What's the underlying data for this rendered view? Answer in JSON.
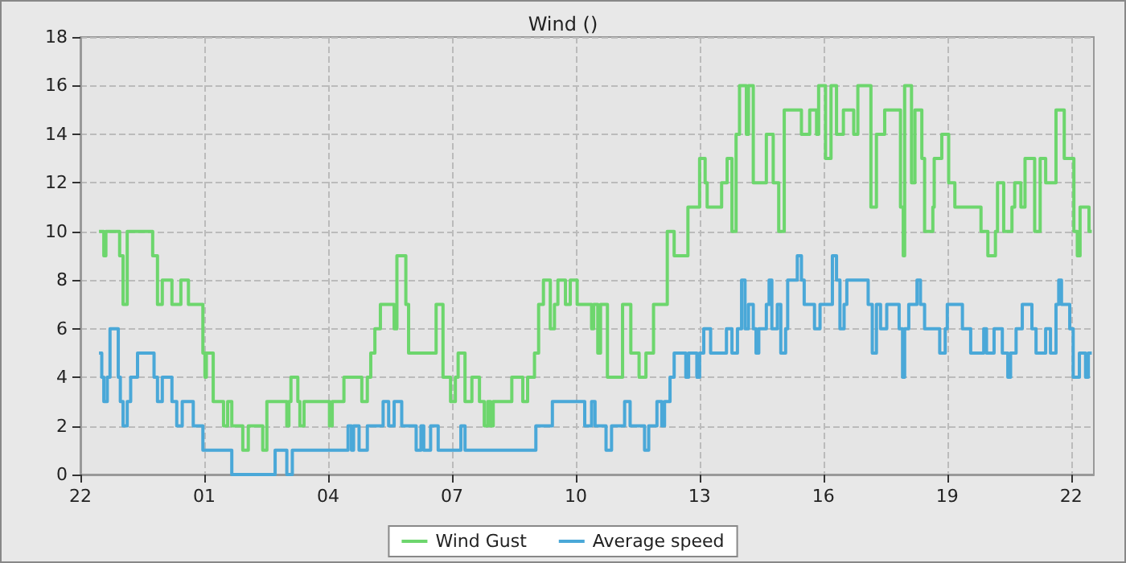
{
  "chart_data": {
    "type": "step",
    "title": "Wind ()",
    "xlim": [
      "--01-01T22:00",
      "--01-02T22:33"
    ],
    "ylim": [
      0,
      18
    ],
    "xticks": [
      {
        "value": "--01-01T22:00",
        "label": "22"
      },
      {
        "value": "--01-02T01:00",
        "label": "01"
      },
      {
        "value": "--01-02T04:00",
        "label": "04"
      },
      {
        "value": "--01-02T07:00",
        "label": "07"
      },
      {
        "value": "--01-02T10:00",
        "label": "10"
      },
      {
        "value": "--01-02T13:00",
        "label": "13"
      },
      {
        "value": "--01-02T16:00",
        "label": "16"
      },
      {
        "value": "--01-02T19:00",
        "label": "19"
      },
      {
        "value": "--01-02T22:00",
        "label": "22"
      }
    ],
    "yticks": [
      0,
      2,
      4,
      6,
      8,
      10,
      12,
      14,
      16,
      18
    ],
    "grid": true,
    "legend": "bottom",
    "marker": "none",
    "line_style": "solid",
    "series": [
      {
        "name": "Wind Gust",
        "color": "#6dd66d",
        "x": [
          "--01-01T22:27",
          "--01-01T22:34",
          "--01-01T22:37",
          "--01-01T22:57",
          "--01-01T23:02",
          "--01-01T23:08",
          "--01-01T23:45",
          "--01-01T23:52",
          "--01-01T23:59",
          "--01-02T00:13",
          "--01-02T00:26",
          "--01-02T00:37",
          "--01-02T00:58",
          "--01-02T01:01",
          "--01-02T01:03",
          "--01-02T01:13",
          "--01-02T01:28",
          "--01-02T01:34",
          "--01-02T01:40",
          "--01-02T01:56",
          "--01-02T02:04",
          "--01-02T02:25",
          "--01-02T02:31",
          "--01-02T03:00",
          "--01-02T03:03",
          "--01-02T03:06",
          "--01-02T03:16",
          "--01-02T03:19",
          "--01-02T03:25",
          "--01-02T04:02",
          "--01-02T04:06",
          "--01-02T04:23",
          "--01-02T04:49",
          "--01-02T04:57",
          "--01-02T05:02",
          "--01-02T05:08",
          "--01-02T05:16",
          "--01-02T05:36",
          "--01-02T05:40",
          "--01-02T05:53",
          "--01-02T05:57",
          "--01-02T06:37",
          "--01-02T06:47",
          "--01-02T06:58",
          "--01-02T07:05",
          "--01-02T07:09",
          "--01-02T07:19",
          "--01-02T07:29",
          "--01-02T07:40",
          "--01-02T07:47",
          "--01-02T07:52",
          "--01-02T07:56",
          "--01-02T08:00",
          "--01-02T08:27",
          "--01-02T08:43",
          "--01-02T08:50",
          "--01-02T09:00",
          "--01-02T09:06",
          "--01-02T09:13",
          "--01-02T09:23",
          "--01-02T09:29",
          "--01-02T09:34",
          "--01-02T09:45",
          "--01-02T09:52",
          "--01-02T10:02",
          "--01-02T10:23",
          "--01-02T10:26",
          "--01-02T10:32",
          "--01-02T10:36",
          "--01-02T10:46",
          "--01-02T11:08",
          "--01-02T11:20",
          "--01-02T11:32",
          "--01-02T11:42",
          "--01-02T11:53",
          "--01-02T12:13",
          "--01-02T12:23",
          "--01-02T12:43",
          "--01-02T13:00",
          "--01-02T13:08",
          "--01-02T13:11",
          "--01-02T13:32",
          "--01-02T13:40",
          "--01-02T13:47",
          "--01-02T13:53",
          "--01-02T13:58",
          "--01-02T14:08",
          "--01-02T14:11",
          "--01-02T14:18",
          "--01-02T14:37",
          "--01-02T14:47",
          "--01-02T14:55",
          "--01-02T15:03",
          "--01-02T15:28",
          "--01-02T15:40",
          "--01-02T15:50",
          "--01-02T15:53",
          "--01-02T16:03",
          "--01-02T16:11",
          "--01-02T16:19",
          "--01-02T16:29",
          "--01-02T16:44",
          "--01-02T16:50",
          "--01-02T17:09",
          "--01-02T17:17",
          "--01-02T17:29",
          "--01-02T17:52",
          "--01-02T17:56",
          "--01-02T17:58",
          "--01-02T18:08",
          "--01-02T18:13",
          "--01-02T18:23",
          "--01-02T18:27",
          "--01-02T18:39",
          "--01-02T18:41",
          "--01-02T18:52",
          "--01-02T19:02",
          "--01-02T19:11",
          "--01-02T19:49",
          "--01-02T19:59",
          "--01-02T20:10",
          "--01-02T20:13",
          "--01-02T20:22",
          "--01-02T20:34",
          "--01-02T20:38",
          "--01-02T20:47",
          "--01-02T20:53",
          "--01-02T21:07",
          "--01-02T21:15",
          "--01-02T21:23",
          "--01-02T21:38",
          "--01-02T21:50",
          "--01-02T22:04",
          "--01-02T22:09",
          "--01-02T22:13",
          "--01-02T22:26",
          "--01-02T22:30"
        ],
        "values": [
          10,
          9,
          10,
          9,
          7,
          10,
          9,
          7,
          8,
          7,
          8,
          7,
          5,
          4,
          5,
          3,
          2,
          3,
          2,
          1,
          2,
          1,
          3,
          2,
          3,
          4,
          3,
          2,
          3,
          2,
          3,
          4,
          3,
          4,
          5,
          6,
          7,
          6,
          9,
          7,
          5,
          7,
          4,
          3,
          4,
          5,
          3,
          4,
          3,
          2,
          3,
          2,
          3,
          4,
          3,
          4,
          5,
          7,
          8,
          6,
          7,
          8,
          7,
          8,
          7,
          6,
          7,
          5,
          7,
          4,
          7,
          5,
          4,
          5,
          7,
          10,
          9,
          11,
          13,
          12,
          11,
          12,
          13,
          10,
          14,
          16,
          14,
          16,
          12,
          14,
          12,
          10,
          15,
          14,
          15,
          14,
          16,
          13,
          16,
          14,
          15,
          14,
          16,
          11,
          14,
          15,
          11,
          9,
          16,
          12,
          15,
          13,
          10,
          11,
          13,
          14,
          12,
          11,
          10,
          9,
          10,
          12,
          10,
          11,
          12,
          11,
          13,
          10,
          13,
          12,
          15,
          13,
          10,
          9,
          11,
          10,
          10
        ]
      },
      {
        "name": "Average speed",
        "color": "#4aa8d8",
        "x": [
          "--01-01T22:27",
          "--01-01T22:31",
          "--01-01T22:34",
          "--01-01T22:39",
          "--01-01T22:43",
          "--01-01T22:55",
          "--01-01T22:58",
          "--01-01T23:02",
          "--01-01T23:08",
          "--01-01T23:13",
          "--01-01T23:23",
          "--01-01T23:47",
          "--01-01T23:52",
          "--01-01T23:59",
          "--01-02T00:13",
          "--01-02T00:20",
          "--01-02T00:28",
          "--01-02T00:44",
          "--01-02T00:58",
          "--01-02T01:40",
          "--01-02T02:43",
          "--01-02T03:00",
          "--01-02T03:08",
          "--01-02T04:29",
          "--01-02T04:34",
          "--01-02T04:37",
          "--01-02T04:45",
          "--01-02T04:57",
          "--01-02T05:20",
          "--01-02T05:28",
          "--01-02T05:36",
          "--01-02T05:47",
          "--01-02T06:08",
          "--01-02T06:15",
          "--01-02T06:19",
          "--01-02T06:29",
          "--01-02T06:40",
          "--01-02T07:13",
          "--01-02T07:19",
          "--01-02T09:02",
          "--01-02T09:26",
          "--01-02T10:13",
          "--01-02T10:23",
          "--01-02T10:28",
          "--01-02T10:44",
          "--01-02T10:52",
          "--01-02T11:11",
          "--01-02T11:19",
          "--01-02T11:40",
          "--01-02T11:46",
          "--01-02T11:58",
          "--01-02T12:05",
          "--01-02T12:09",
          "--01-02T12:17",
          "--01-02T12:23",
          "--01-02T12:40",
          "--01-02T12:44",
          "--01-02T12:56",
          "--01-02T13:00",
          "--01-02T13:06",
          "--01-02T13:16",
          "--01-02T13:39",
          "--01-02T13:47",
          "--01-02T13:55",
          "--01-02T14:01",
          "--01-02T14:06",
          "--01-02T14:11",
          "--01-02T14:18",
          "--01-02T14:22",
          "--01-02T14:26",
          "--01-02T14:37",
          "--01-02T14:41",
          "--01-02T14:45",
          "--01-02T14:53",
          "--01-02T14:58",
          "--01-02T15:05",
          "--01-02T15:08",
          "--01-02T15:22",
          "--01-02T15:28",
          "--01-02T15:32",
          "--01-02T15:47",
          "--01-02T15:55",
          "--01-02T16:13",
          "--01-02T16:19",
          "--01-02T16:24",
          "--01-02T16:30",
          "--01-02T16:34",
          "--01-02T17:05",
          "--01-02T17:11",
          "--01-02T17:17",
          "--01-02T17:23",
          "--01-02T17:32",
          "--01-02T17:50",
          "--01-02T17:55",
          "--01-02T17:58",
          "--01-02T18:04",
          "--01-02T18:16",
          "--01-02T18:21",
          "--01-02T18:27",
          "--01-02T18:49",
          "--01-02T18:57",
          "--01-02T19:00",
          "--01-02T19:22",
          "--01-02T19:34",
          "--01-02T19:53",
          "--01-02T19:57",
          "--01-02T20:08",
          "--01-02T20:20",
          "--01-02T20:28",
          "--01-02T20:32",
          "--01-02T20:40",
          "--01-02T20:49",
          "--01-02T21:03",
          "--01-02T21:09",
          "--01-02T21:23",
          "--01-02T21:30",
          "--01-02T21:38",
          "--01-02T21:42",
          "--01-02T21:46",
          "--01-02T21:58",
          "--01-02T22:03",
          "--01-02T22:12",
          "--01-02T22:21",
          "--01-02T22:25",
          "--01-02T22:30"
        ],
        "values": [
          5,
          4,
          3,
          4,
          6,
          4,
          3,
          2,
          3,
          4,
          5,
          4,
          3,
          4,
          3,
          2,
          3,
          2,
          1,
          0,
          1,
          0,
          1,
          2,
          1,
          2,
          1,
          2,
          3,
          2,
          3,
          2,
          1,
          2,
          1,
          2,
          1,
          2,
          1,
          2,
          3,
          2,
          3,
          2,
          1,
          2,
          3,
          2,
          1,
          2,
          3,
          2,
          3,
          4,
          5,
          4,
          5,
          4,
          5,
          6,
          5,
          6,
          5,
          6,
          8,
          6,
          7,
          6,
          5,
          6,
          7,
          8,
          6,
          7,
          5,
          6,
          8,
          9,
          8,
          7,
          6,
          7,
          9,
          8,
          6,
          7,
          8,
          7,
          5,
          7,
          6,
          7,
          6,
          4,
          6,
          7,
          8,
          7,
          6,
          5,
          6,
          7,
          6,
          5,
          6,
          5,
          6,
          5,
          4,
          5,
          6,
          7,
          6,
          5,
          6,
          5,
          7,
          8,
          7,
          6,
          4,
          5,
          4,
          5,
          5
        ]
      }
    ]
  }
}
